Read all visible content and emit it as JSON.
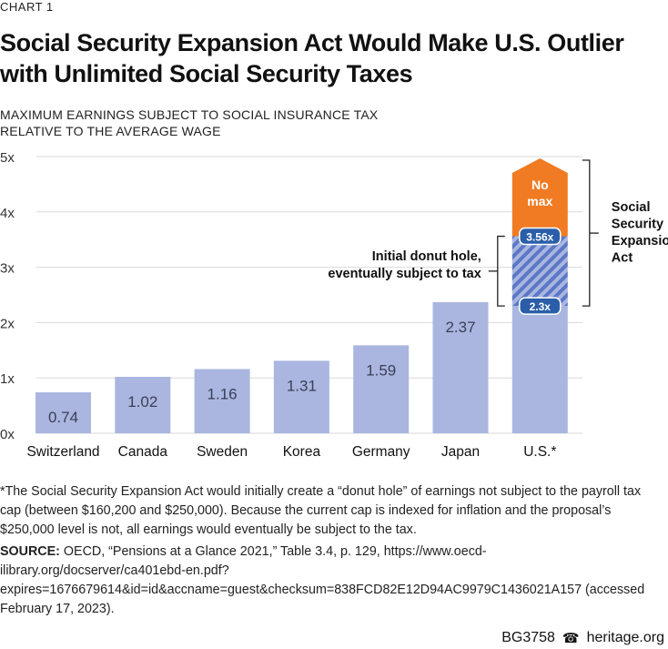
{
  "header": {
    "chart_label": "CHART 1",
    "title_line1": "Social Security Expansion Act Would Make U.S. Outlier",
    "title_line2": "with Unlimited Social Security Taxes",
    "subtitle_line1": "MAXIMUM EARNINGS SUBJECT TO SOCIAL INSURANCE TAX",
    "subtitle_line2": "RELATIVE TO THE AVERAGE WAGE"
  },
  "chart_data": {
    "type": "bar",
    "title": "Social Security Expansion Act Would Make U.S. Outlier with Unlimited Social Security Taxes",
    "ylabel": "MAXIMUM EARNINGS SUBJECT TO SOCIAL INSURANCE TAX RELATIVE TO THE AVERAGE WAGE",
    "ylim": [
      0,
      5
    ],
    "yticks": [
      0,
      1,
      2,
      3,
      4,
      5
    ],
    "ytick_labels": [
      "0x",
      "1x",
      "2x",
      "3x",
      "4x",
      "5x"
    ],
    "categories": [
      "Switzerland",
      "Canada",
      "Sweden",
      "Korea",
      "Germany",
      "Japan",
      "U.S.*"
    ],
    "values": [
      0.74,
      1.02,
      1.16,
      1.31,
      1.59,
      2.37,
      2.3
    ],
    "value_labels": [
      "0.74",
      "1.02",
      "1.16",
      "1.31",
      "1.59",
      "2.37",
      ""
    ],
    "us_stack": {
      "current_cap": 2.3,
      "current_cap_label": "2.3x",
      "donut_hole_top": 3.56,
      "donut_hole_label": "3.56x",
      "no_max_label_line1": "No",
      "no_max_label_line2": "max"
    },
    "annotations": {
      "donut_line1": "Initial donut hole,",
      "donut_line2": "eventually subject to tax",
      "act_lines": [
        "Social",
        "Security",
        "Expansion",
        "Act"
      ]
    },
    "colors": {
      "bar": "#aab6e0",
      "hatch": "#5b78c6",
      "no_max": "#f07b22",
      "badge": "#2a5ea8",
      "axis_text": "#333333"
    }
  },
  "footnote": "*The Social Security Expansion Act would initially create a “donut hole” of earnings not subject to the payroll tax cap (between $160,200 and $250,000). Because the current cap is indexed for inflation and the proposal’s $250,000 level is not, all earnings would eventually be subject to the tax.",
  "source": {
    "label": "SOURCE:",
    "text": "OECD, “Pensions at a Glance 2021,” Table 3.4, p. 129, https://www.oecd-ilibrary.org/docserver/ca401ebd-en.pdf?expires=1676679614&id=id&accname=guest&checksum=838FCD82E12D94AC9979C1436021A157 (accessed February 17, 2023)."
  },
  "footer": {
    "code": "BG3758",
    "site": "heritage.org"
  }
}
